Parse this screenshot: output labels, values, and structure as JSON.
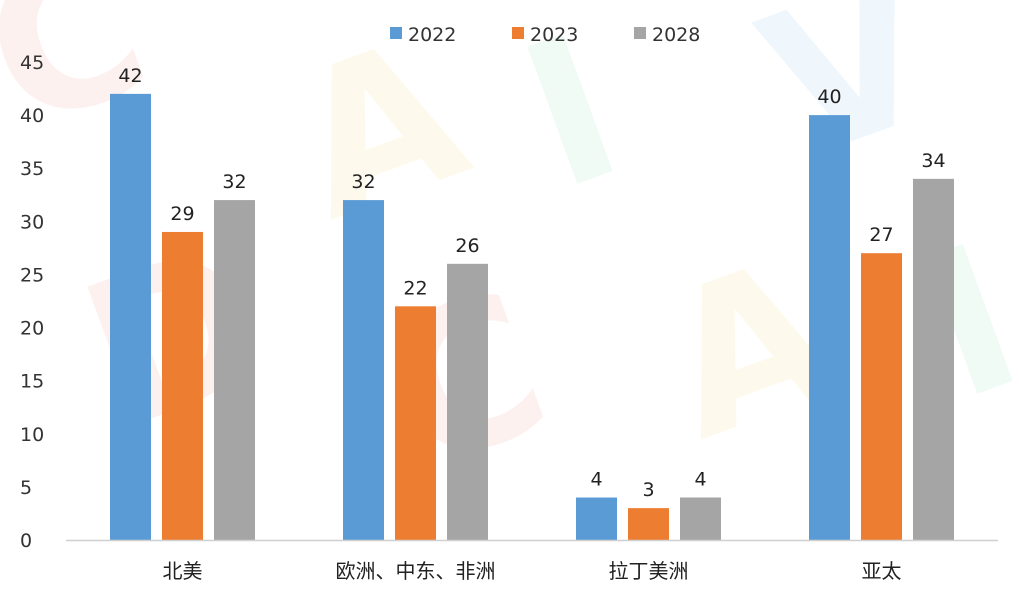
{
  "watermark": "CAIVD",
  "chart_data": {
    "type": "bar",
    "categories": [
      "北美",
      "欧洲、中东、非洲",
      "拉丁美洲",
      "亚太"
    ],
    "series": [
      {
        "name": "2022",
        "color": "#5b9bd5",
        "values": [
          42,
          32,
          4,
          40
        ]
      },
      {
        "name": "2023",
        "color": "#ed7d31",
        "values": [
          29,
          22,
          3,
          27
        ]
      },
      {
        "name": "2028",
        "color": "#a5a5a5",
        "values": [
          32,
          26,
          4,
          34
        ]
      }
    ],
    "data_labels": [
      [
        "42",
        "32",
        "4",
        "40"
      ],
      [
        "29",
        "22",
        "3",
        "27"
      ],
      [
        "32",
        "26",
        "4",
        "34"
      ]
    ],
    "ylim": [
      0,
      45
    ],
    "yticks": [
      0,
      5,
      10,
      15,
      20,
      25,
      30,
      35,
      40,
      45
    ],
    "legend_position": "top-center",
    "grid": false
  }
}
